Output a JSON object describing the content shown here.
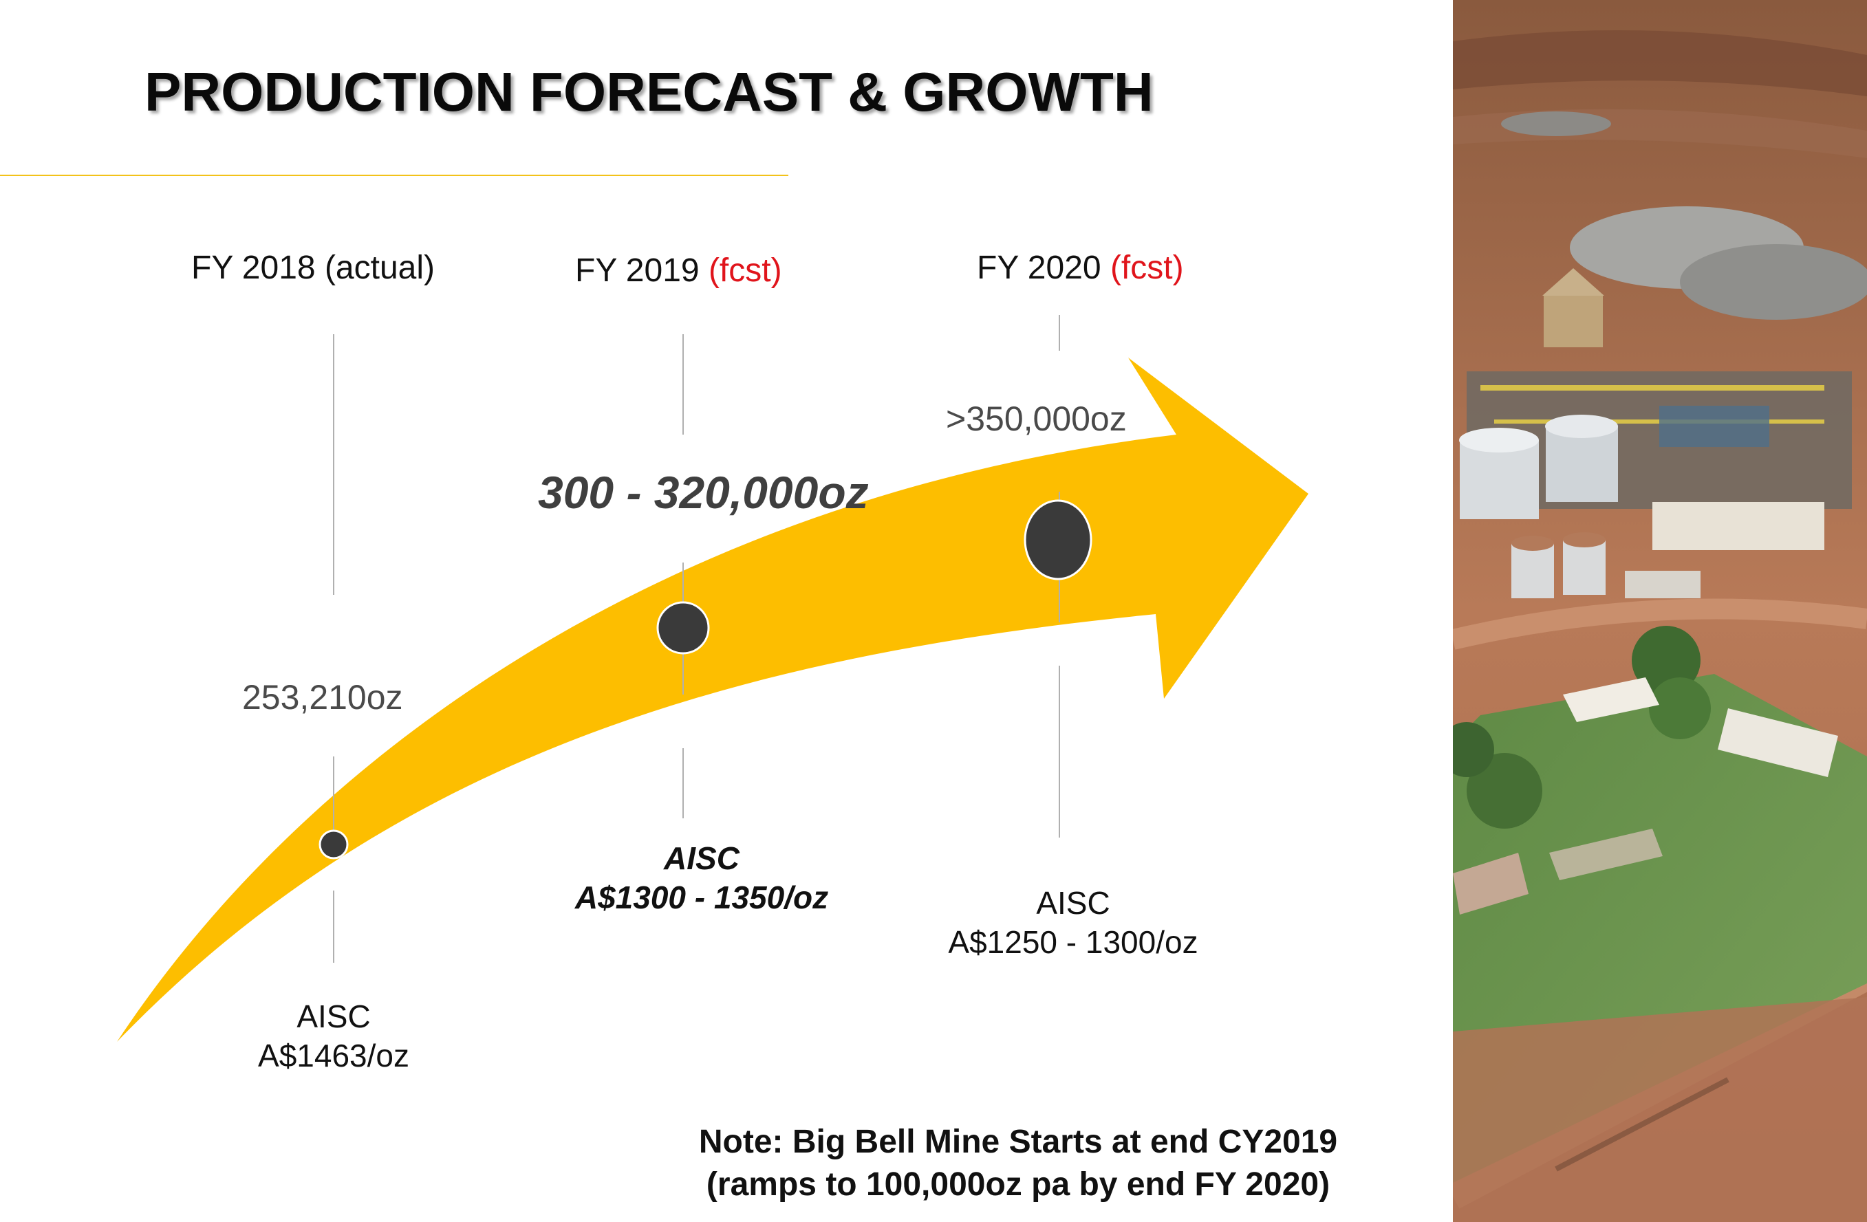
{
  "title": "PRODUCTION FORECAST & GROWTH",
  "milestones": [
    {
      "year_label": "FY 2018",
      "status": "(actual)",
      "production": "253,210oz",
      "aisc_label": "AISC",
      "aisc_value": "A$1463/oz"
    },
    {
      "year_label": "FY 2019",
      "status": "(fcst)",
      "production": "300 - 320,000oz",
      "aisc_label": "AISC",
      "aisc_value": "A$1300 - 1350/oz"
    },
    {
      "year_label": "FY 2020",
      "status": "(fcst)",
      "production": ">350,000oz",
      "aisc_label": "AISC",
      "aisc_value": "A$1250 - 1300/oz"
    }
  ],
  "note": {
    "line1": "Note:  Big Bell Mine Starts at end CY2019",
    "line2": "(ramps to 100,000oz pa by end FY 2020)"
  },
  "colors": {
    "arrow": "#fdbe00",
    "accent_rule": "#f3c21a",
    "forecast": "#e0141b",
    "marker": "#3a3a3a"
  },
  "photo": {
    "description_icon": "mine-site-aerial-photo"
  }
}
